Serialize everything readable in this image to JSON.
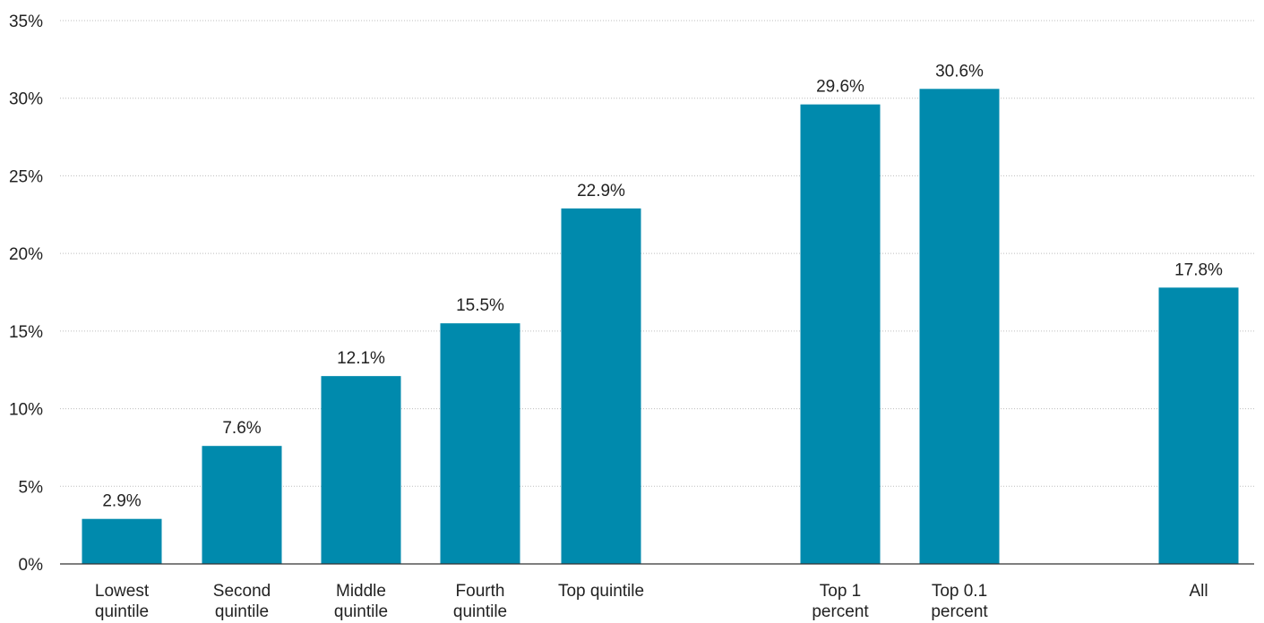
{
  "chart_data": {
    "type": "bar",
    "categories": [
      [
        "Lowest",
        "quintile"
      ],
      [
        "Second",
        "quintile"
      ],
      [
        "Middle",
        "quintile"
      ],
      [
        "Fourth",
        "quintile"
      ],
      [
        "Top quintile"
      ],
      [
        "Top 1",
        "percent"
      ],
      [
        "Top 0.1",
        "percent"
      ],
      [
        "All"
      ]
    ],
    "values": [
      2.9,
      7.6,
      12.1,
      15.5,
      22.9,
      29.6,
      30.6,
      17.8
    ],
    "data_labels": [
      "2.9%",
      "7.6%",
      "12.1%",
      "15.5%",
      "22.9%",
      "29.6%",
      "30.6%",
      "17.8%"
    ],
    "ylim": [
      0,
      35
    ],
    "yticks": [
      0,
      5,
      10,
      15,
      20,
      25,
      30,
      35
    ],
    "ytick_labels": [
      "0%",
      "5%",
      "10%",
      "15%",
      "20%",
      "25%",
      "30%",
      "35%"
    ],
    "title": "",
    "xlabel": "",
    "ylabel": "",
    "grid": true,
    "bar_color": "#008aad"
  }
}
